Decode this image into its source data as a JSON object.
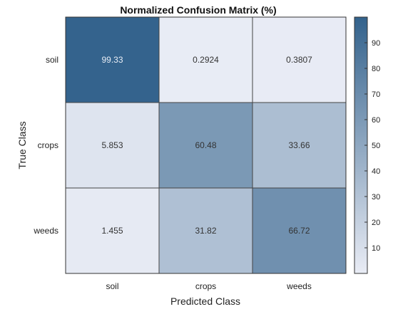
{
  "chart_data": {
    "type": "heatmap",
    "title": "Normalized Confusion Matrix (%)",
    "xlabel": "Predicted Class",
    "ylabel": "True Class",
    "x_categories": [
      "soil",
      "crops",
      "weeds"
    ],
    "y_categories": [
      "soil",
      "crops",
      "weeds"
    ],
    "values": [
      [
        99.33,
        0.2924,
        0.3807
      ],
      [
        5.853,
        60.48,
        33.66
      ],
      [
        1.455,
        31.82,
        66.72
      ]
    ],
    "value_labels": [
      [
        "99.33",
        "0.2924",
        "0.3807"
      ],
      [
        "5.853",
        "60.48",
        "33.66"
      ],
      [
        "1.455",
        "31.82",
        "66.72"
      ]
    ],
    "colorbar": {
      "range": [
        0,
        100
      ],
      "ticks": [
        10,
        20,
        30,
        40,
        50,
        60,
        70,
        80,
        90
      ],
      "color_low": "#e9ecf5",
      "color_high": "#33628c"
    }
  }
}
